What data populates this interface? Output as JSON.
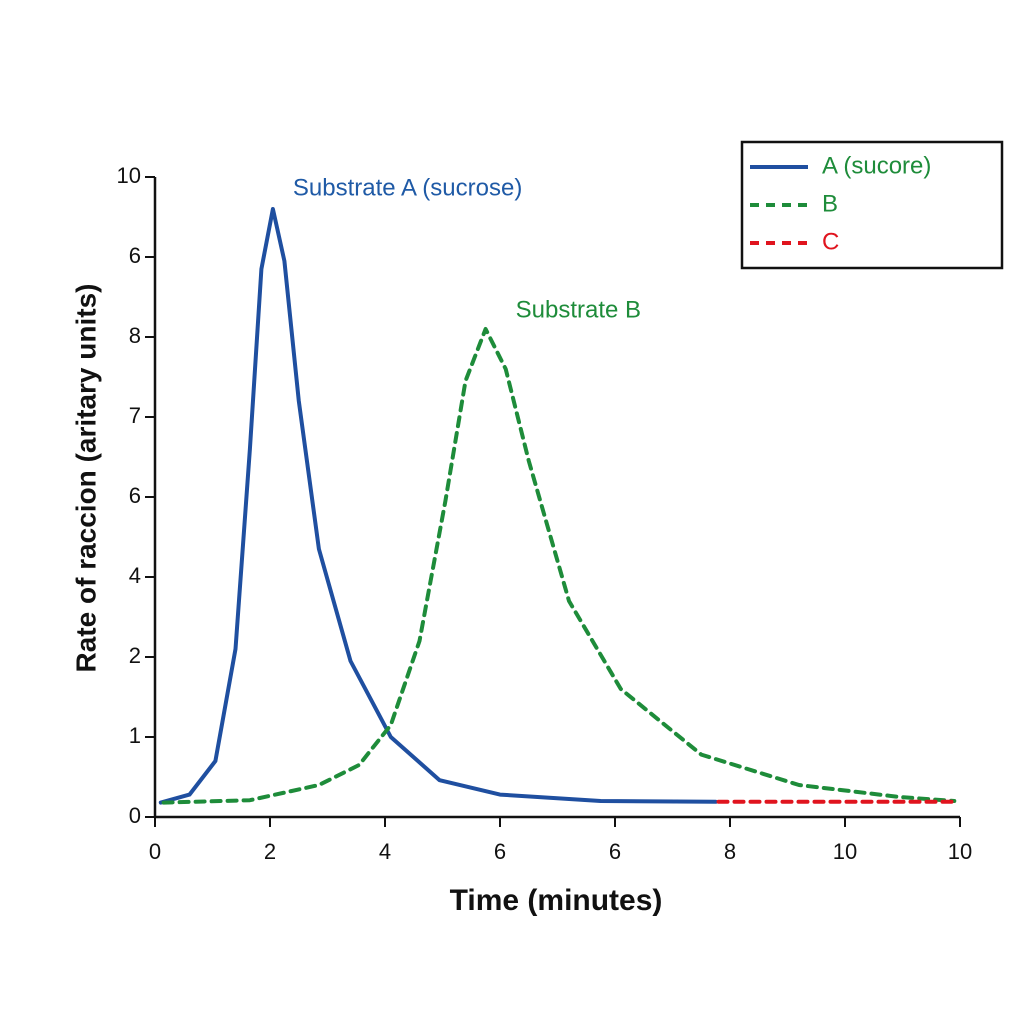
{
  "chart_data": {
    "type": "line",
    "xlabel": "Time (minutes)",
    "ylabel": "Rate of raccion (aritary units)",
    "annotations": [
      {
        "text": "Substrate A (sucrose)",
        "color": "#1f5aa6",
        "x": 2.05,
        "y": 7.6
      },
      {
        "text": "Substrate B",
        "color": "#1e8c3a",
        "x": 5.75,
        "y": 6.1
      }
    ],
    "xlim": [
      0,
      14
    ],
    "xticks": [
      0,
      2,
      4,
      6,
      {
        "value": 8,
        "label": "6"
      },
      {
        "value": 10,
        "label": "8"
      },
      {
        "value": 12,
        "label": "10"
      },
      {
        "value": 14,
        "label": "10"
      }
    ],
    "ylim": [
      0,
      8
    ],
    "yticks": [
      0,
      {
        "value": 1,
        "label": "1"
      },
      {
        "value": 2,
        "label": "2"
      },
      {
        "value": 3,
        "label": "4"
      },
      {
        "value": 4,
        "label": "6"
      },
      {
        "value": 5,
        "label": "7"
      },
      {
        "value": 6,
        "label": "8"
      },
      {
        "value": 7,
        "label": "6"
      },
      {
        "value": 8,
        "label": "10"
      }
    ],
    "legend": "upper right",
    "series": [
      {
        "name": "A (sucore)",
        "color": "#1f4fa0",
        "label_color": "#1e8c3a",
        "dash": "solid",
        "x": [
          0.1,
          0.6,
          1.05,
          1.4,
          1.65,
          1.85,
          2.05,
          2.25,
          2.5,
          2.85,
          3.4,
          4.1,
          4.95,
          6,
          7.75,
          9.75
        ],
        "values": [
          0.18,
          0.28,
          0.7,
          2.1,
          4.6,
          6.85,
          7.6,
          6.95,
          5.2,
          3.35,
          1.95,
          1.0,
          0.46,
          0.28,
          0.2,
          0.19
        ]
      },
      {
        "name": "B",
        "color": "#1e8c3a",
        "label_color": "#1e8c3a",
        "dash": "dashed",
        "x": [
          0.15,
          1.65,
          2.85,
          3.55,
          4.1,
          4.6,
          5.05,
          5.4,
          5.75,
          6.1,
          6.5,
          7.2,
          8.1,
          9.5,
          11.2,
          12.95,
          13.9
        ],
        "values": [
          0.18,
          0.21,
          0.4,
          0.65,
          1.15,
          2.2,
          3.95,
          5.45,
          6.1,
          5.6,
          4.45,
          2.7,
          1.6,
          0.78,
          0.4,
          0.25,
          0.2
        ]
      },
      {
        "name": "C",
        "color": "#e0141e",
        "label_color": "#e0141e",
        "dash": "dashed",
        "x": [
          9.8,
          13.9
        ],
        "values": [
          0.19,
          0.19
        ]
      }
    ]
  }
}
